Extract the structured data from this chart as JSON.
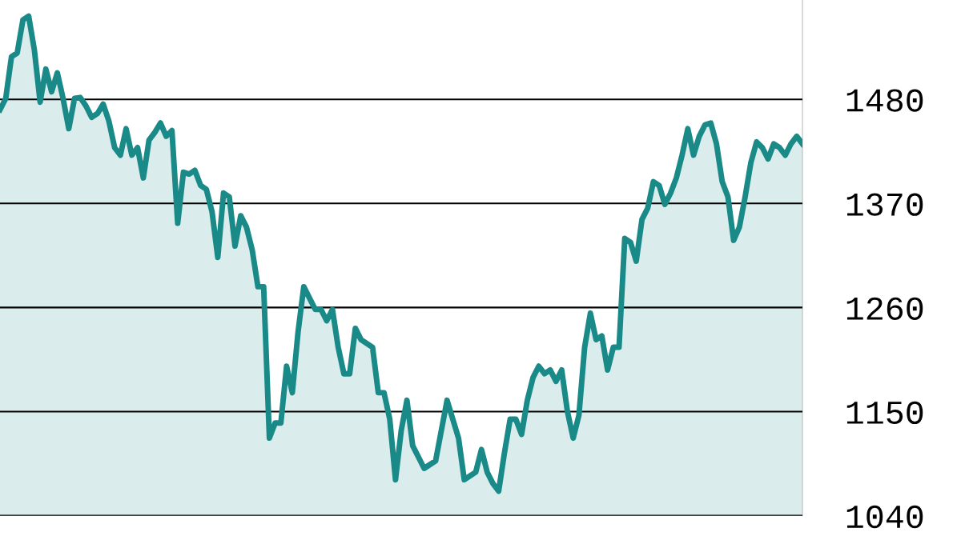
{
  "chart_data": {
    "type": "area",
    "categories": [
      null,
      null,
      null,
      null,
      null,
      null,
      null,
      null,
      null,
      null,
      null,
      null,
      null,
      null,
      null,
      null,
      null,
      null,
      null,
      null,
      null,
      null,
      null,
      null,
      null,
      null,
      null,
      null,
      null,
      null,
      null,
      null,
      null,
      null,
      null,
      null,
      null,
      null,
      null,
      null,
      null,
      null,
      null,
      null,
      null,
      null,
      null,
      null,
      null,
      null,
      null,
      null,
      null,
      null,
      null,
      null,
      null,
      null,
      null,
      null,
      null,
      null,
      null,
      null,
      null,
      null,
      null,
      null,
      null,
      null,
      null,
      null,
      null,
      null,
      null,
      null,
      null,
      null,
      null,
      null,
      null,
      null,
      null,
      null,
      null,
      null,
      null,
      null,
      null,
      null,
      null,
      null,
      null,
      null,
      null,
      null,
      null,
      null,
      null,
      null,
      null,
      null,
      null,
      null,
      null,
      null,
      null,
      null,
      null,
      null,
      null,
      null,
      null,
      null,
      null,
      null,
      null,
      null,
      null,
      null,
      null,
      null,
      null,
      null,
      null,
      null,
      null,
      null,
      null,
      null,
      null,
      null,
      null,
      null,
      null,
      null,
      null,
      null,
      null,
      null,
      null
    ],
    "series": [
      {
        "color": "#1a8a88",
        "values": [
          1469,
          1481,
          1525,
          1529,
          1564,
          1568,
          1532,
          1477,
          1512,
          1488,
          1508,
          1481,
          1449,
          1481,
          1482,
          1473,
          1461,
          1465,
          1475,
          1457,
          1429,
          1421,
          1449,
          1421,
          1429,
          1397,
          1437,
          1445,
          1455,
          1441,
          1447,
          1349,
          1403,
          1401,
          1405,
          1389,
          1385,
          1361,
          1313,
          1381,
          1377,
          1325,
          1357,
          1345,
          1321,
          1282,
          1282,
          1122,
          1138,
          1138,
          1198,
          1170,
          1234,
          1282,
          1270,
          1258,
          1258,
          1246,
          1258,
          1218,
          1190,
          1190,
          1238,
          1226,
          1222,
          1218,
          1170,
          1170,
          1142,
          1078,
          1130,
          1162,
          1114,
          1102,
          1090,
          1094,
          1098,
          1130,
          1162,
          1142,
          1122,
          1078,
          1082,
          1086,
          1110,
          1086,
          1074,
          1066,
          1106,
          1142,
          1142,
          1126,
          1162,
          1186,
          1198,
          1190,
          1194,
          1182,
          1194,
          1150,
          1122,
          1146,
          1218,
          1254,
          1226,
          1230,
          1194,
          1218,
          1218,
          1333,
          1329,
          1309,
          1353,
          1365,
          1393,
          1389,
          1369,
          1381,
          1397,
          1421,
          1449,
          1421,
          1441,
          1453,
          1455,
          1433,
          1393,
          1377,
          1331,
          1345,
          1377,
          1413,
          1435,
          1429,
          1417,
          1433,
          1429,
          1421,
          1433,
          1441,
          1433
        ]
      }
    ],
    "ylim": [
      1040,
      1585
    ],
    "yticks": [
      1040,
      1150,
      1260,
      1370,
      1480
    ],
    "grid": "y",
    "tick_labels": "y"
  }
}
